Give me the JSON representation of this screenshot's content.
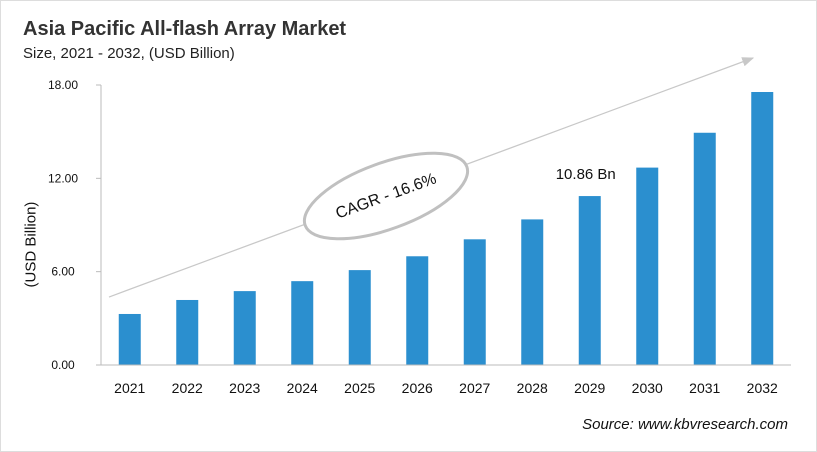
{
  "chart_data": {
    "type": "bar",
    "title": "Asia Pacific All-flash Array Market",
    "subtitle": "Size, 2021 - 2032, (USD Billion)",
    "xlabel": "",
    "ylabel": "(USD Billion)",
    "categories": [
      "2021",
      "2022",
      "2023",
      "2024",
      "2025",
      "2026",
      "2027",
      "2028",
      "2029",
      "2030",
      "2031",
      "2032"
    ],
    "values": [
      3.28,
      4.18,
      4.75,
      5.39,
      6.1,
      6.99,
      8.08,
      9.36,
      10.86,
      12.69,
      14.93,
      17.55
    ],
    "ylim": [
      0,
      18
    ],
    "yticks": [
      "0.00",
      "6.00",
      "12.00",
      "18.00"
    ],
    "grid": false,
    "bar_color": "#2b8fcf",
    "annotations": {
      "data_label": "10.86 Bn",
      "data_label_category": "2029",
      "cagr": "CAGR - 16.6%"
    },
    "source": "Source: www.kbvresearch.com"
  }
}
